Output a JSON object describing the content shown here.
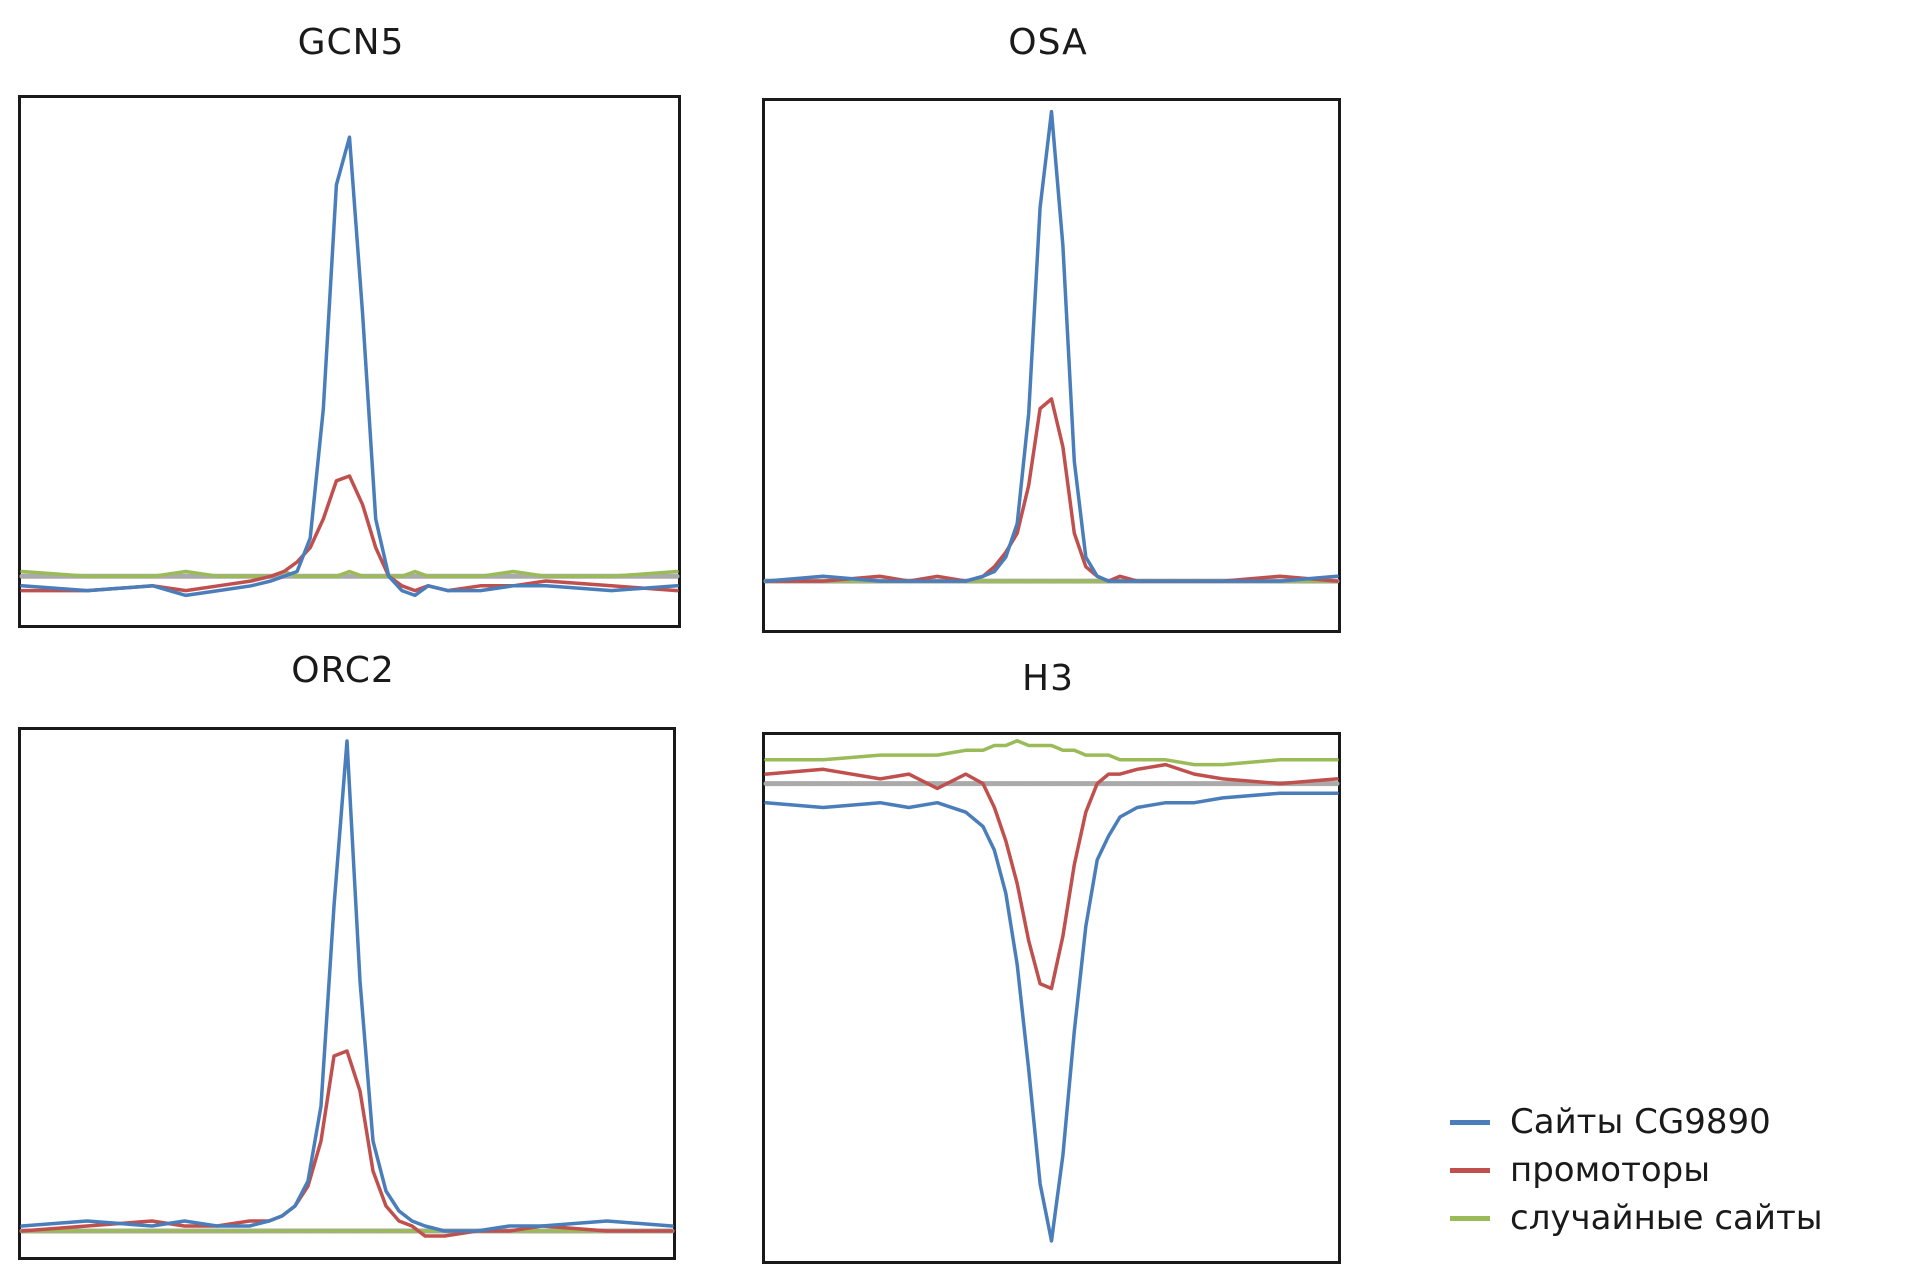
{
  "chart_data": [
    {
      "type": "line",
      "title": "GCN5",
      "x": [
        -50,
        -40,
        -30,
        -25,
        -20,
        -15,
        -12,
        -10,
        -8,
        -6,
        -4,
        -2,
        0,
        2,
        4,
        6,
        8,
        10,
        12,
        15,
        20,
        25,
        30,
        40,
        50
      ],
      "ylim": [
        -0.1,
        1.0
      ],
      "series": [
        {
          "name": "Сайты CG9890",
          "color": "#4a7ebb",
          "values": [
            -0.02,
            -0.03,
            -0.02,
            -0.04,
            -0.03,
            -0.02,
            -0.01,
            0.0,
            0.01,
            0.08,
            0.35,
            0.82,
            0.92,
            0.55,
            0.12,
            0.0,
            -0.03,
            -0.04,
            -0.02,
            -0.03,
            -0.03,
            -0.02,
            -0.02,
            -0.03,
            -0.02
          ]
        },
        {
          "name": "промоторы",
          "color": "#c0504d",
          "values": [
            -0.03,
            -0.03,
            -0.02,
            -0.03,
            -0.02,
            -0.01,
            0.0,
            0.01,
            0.03,
            0.06,
            0.12,
            0.2,
            0.21,
            0.15,
            0.06,
            0.0,
            -0.02,
            -0.03,
            -0.02,
            -0.03,
            -0.02,
            -0.02,
            -0.01,
            -0.02,
            -0.03
          ]
        },
        {
          "name": "случайные сайты",
          "color": "#9bbb59",
          "values": [
            0.01,
            0.0,
            0.0,
            0.01,
            0.0,
            0.0,
            0.0,
            0.01,
            0.0,
            0.0,
            0.0,
            0.0,
            0.01,
            0.0,
            0.0,
            0.0,
            0.0,
            0.01,
            0.0,
            0.0,
            0.0,
            0.01,
            0.0,
            0.0,
            0.01
          ]
        },
        {
          "name": "",
          "color": "#aaaaaa",
          "values": [
            0,
            0,
            0,
            0,
            0,
            0,
            0,
            0,
            0,
            0,
            0,
            0,
            0,
            0,
            0,
            0,
            0,
            0,
            0,
            0,
            0,
            0,
            0,
            0,
            0
          ]
        }
      ]
    },
    {
      "type": "line",
      "title": "OSA",
      "x": [
        -50,
        -40,
        -30,
        -25,
        -20,
        -15,
        -12,
        -10,
        -8,
        -6,
        -4,
        -2,
        0,
        2,
        4,
        6,
        8,
        10,
        12,
        15,
        20,
        25,
        30,
        40,
        50
      ],
      "ylim": [
        -0.1,
        1.0
      ],
      "series": [
        {
          "name": "Сайты CG9890",
          "color": "#4a7ebb",
          "values": [
            0.0,
            0.01,
            0.0,
            0.0,
            0.0,
            0.0,
            0.01,
            0.02,
            0.05,
            0.12,
            0.35,
            0.78,
            0.98,
            0.7,
            0.25,
            0.05,
            0.01,
            0.0,
            0.0,
            0.0,
            0.0,
            0.0,
            0.0,
            0.0,
            0.01
          ]
        },
        {
          "name": "промоторы",
          "color": "#c0504d",
          "values": [
            0.0,
            0.0,
            0.01,
            0.0,
            0.01,
            0.0,
            0.01,
            0.03,
            0.06,
            0.1,
            0.2,
            0.36,
            0.38,
            0.28,
            0.1,
            0.03,
            0.01,
            0.0,
            0.01,
            0.0,
            0.0,
            0.0,
            0.0,
            0.01,
            0.0
          ]
        },
        {
          "name": "случайные сайты",
          "color": "#9bbb59",
          "values": [
            0.0,
            0.0,
            0.0,
            0.0,
            0.0,
            0.0,
            0.0,
            0.0,
            0.0,
            0.0,
            0.0,
            0.0,
            0.0,
            0.0,
            0.0,
            0.0,
            0.0,
            0.0,
            0.0,
            0.0,
            0.0,
            0.0,
            0.0,
            0.0,
            0.0
          ]
        },
        {
          "name": "",
          "color": "#aaaaaa",
          "values": [
            0,
            0,
            0,
            0,
            0,
            0,
            0,
            0,
            0,
            0,
            0,
            0,
            0,
            0,
            0,
            0,
            0,
            0,
            0,
            0,
            0,
            0,
            0,
            0,
            0
          ]
        }
      ]
    },
    {
      "type": "line",
      "title": "ORC2",
      "x": [
        -50,
        -40,
        -30,
        -25,
        -20,
        -15,
        -12,
        -10,
        -8,
        -6,
        -4,
        -2,
        0,
        2,
        4,
        6,
        8,
        10,
        12,
        15,
        20,
        25,
        30,
        40,
        50
      ],
      "ylim": [
        -0.05,
        1.0
      ],
      "series": [
        {
          "name": "Сайты CG9890",
          "color": "#4a7ebb",
          "values": [
            0.01,
            0.02,
            0.01,
            0.02,
            0.01,
            0.01,
            0.02,
            0.03,
            0.05,
            0.1,
            0.25,
            0.65,
            0.98,
            0.5,
            0.18,
            0.08,
            0.04,
            0.02,
            0.01,
            0.0,
            0.0,
            0.01,
            0.01,
            0.02,
            0.01
          ]
        },
        {
          "name": "промоторы",
          "color": "#c0504d",
          "values": [
            0.0,
            0.01,
            0.02,
            0.01,
            0.01,
            0.02,
            0.02,
            0.03,
            0.05,
            0.09,
            0.18,
            0.35,
            0.36,
            0.28,
            0.12,
            0.05,
            0.02,
            0.01,
            -0.01,
            -0.01,
            0.0,
            0.0,
            0.01,
            0.0,
            0.0
          ]
        },
        {
          "name": "случайные сайты",
          "color": "#9bbb59",
          "values": [
            0.0,
            0.0,
            0.0,
            0.0,
            0.0,
            0.0,
            0.0,
            0.0,
            0.0,
            0.0,
            0.0,
            0.0,
            0.0,
            0.0,
            0.0,
            0.0,
            0.0,
            0.0,
            0.0,
            0.0,
            0.0,
            0.0,
            0.0,
            0.0,
            0.0
          ]
        },
        {
          "name": "",
          "color": "#aaaaaa",
          "values": [
            0,
            0,
            0,
            0,
            0,
            0,
            0,
            0,
            0,
            0,
            0,
            0,
            0,
            0,
            0,
            0,
            0,
            0,
            0,
            0,
            0,
            0,
            0,
            0,
            0
          ]
        }
      ]
    },
    {
      "type": "line",
      "title": "H3",
      "x": [
        -50,
        -40,
        -30,
        -25,
        -20,
        -15,
        -12,
        -10,
        -8,
        -6,
        -4,
        -2,
        0,
        2,
        4,
        6,
        8,
        10,
        12,
        15,
        20,
        25,
        30,
        40,
        50
      ],
      "ylim": [
        -1.0,
        0.1
      ],
      "series": [
        {
          "name": "Сайты CG9890",
          "color": "#4a7ebb",
          "values": [
            -0.04,
            -0.05,
            -0.04,
            -0.05,
            -0.04,
            -0.06,
            -0.09,
            -0.14,
            -0.23,
            -0.38,
            -0.6,
            -0.84,
            -0.96,
            -0.78,
            -0.52,
            -0.3,
            -0.16,
            -0.11,
            -0.07,
            -0.05,
            -0.04,
            -0.04,
            -0.03,
            -0.02,
            -0.02
          ]
        },
        {
          "name": "промоторы",
          "color": "#c0504d",
          "values": [
            0.02,
            0.03,
            0.01,
            0.02,
            -0.01,
            0.02,
            0.0,
            -0.05,
            -0.12,
            -0.21,
            -0.33,
            -0.42,
            -0.43,
            -0.32,
            -0.17,
            -0.06,
            0.0,
            0.02,
            0.02,
            0.03,
            0.04,
            0.02,
            0.01,
            0.0,
            0.01
          ]
        },
        {
          "name": "случайные сайты",
          "color": "#9bbb59",
          "values": [
            0.05,
            0.05,
            0.06,
            0.06,
            0.06,
            0.07,
            0.07,
            0.08,
            0.08,
            0.09,
            0.08,
            0.08,
            0.08,
            0.07,
            0.07,
            0.06,
            0.06,
            0.06,
            0.05,
            0.05,
            0.05,
            0.04,
            0.04,
            0.05,
            0.05
          ]
        },
        {
          "name": "",
          "color": "#aaaaaa",
          "values": [
            0,
            0,
            0,
            0,
            0,
            0,
            0,
            0,
            0,
            0,
            0,
            0,
            0,
            0,
            0,
            0,
            0,
            0,
            0,
            0,
            0,
            0,
            0,
            0,
            0
          ]
        }
      ]
    }
  ],
  "legend": {
    "items": [
      {
        "label": "Сайты CG9890",
        "color": "#4a7ebb"
      },
      {
        "label": "промоторы",
        "color": "#c0504d"
      },
      {
        "label": "случайные сайты",
        "color": "#9bbb59"
      }
    ]
  }
}
